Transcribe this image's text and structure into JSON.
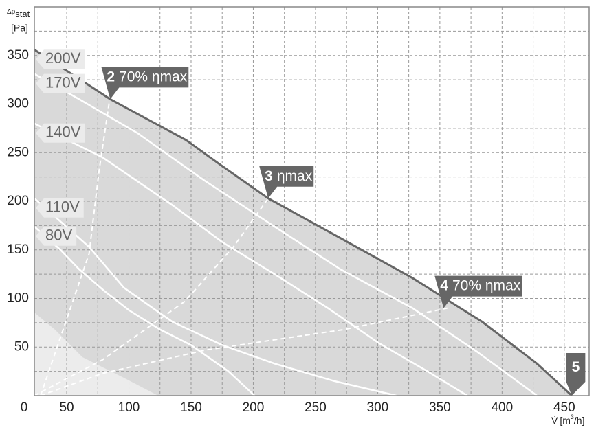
{
  "chart_data": {
    "type": "line",
    "y_label": {
      "symbol": "Δp",
      "subscript": "stat",
      "unit": "[Pa]"
    },
    "x_label": {
      "symbol": "V̇",
      "unit_start": "[m",
      "superscript": "3",
      "unit_end": "/h]"
    },
    "origin_label": "0",
    "xlim": [
      24,
      470
    ],
    "ylim": [
      0,
      400
    ],
    "xticks": [
      50,
      100,
      150,
      200,
      250,
      300,
      350,
      400,
      450
    ],
    "yticks": [
      50,
      100,
      150,
      200,
      250,
      300,
      350
    ],
    "xgrid": [
      75,
      125,
      175,
      225,
      275,
      325,
      375,
      425
    ],
    "ygrid": [
      25,
      75,
      125,
      175,
      225,
      275,
      325,
      375
    ],
    "grid": true,
    "area_color": "#d9d9d9",
    "series": [
      {
        "name": "200V",
        "color": "#666666",
        "x": [
          24,
          85,
          146,
          173,
          212,
          273,
          328,
          384,
          428,
          456
        ],
        "values": [
          356,
          305,
          263,
          238,
          203,
          160,
          121,
          76,
          33,
          0
        ]
      },
      {
        "name": "170V",
        "color": "#ffffff",
        "x": [
          24,
          60,
          107,
          160,
          217,
          270,
          328,
          380,
          428
        ],
        "values": [
          331,
          305,
          270,
          222,
          174,
          130,
          90,
          45,
          0
        ]
      },
      {
        "name": "140V",
        "color": "#ffffff",
        "x": [
          24,
          79,
          135,
          175,
          217,
          260,
          301,
          340,
          372
        ],
        "values": [
          280,
          245,
          196,
          158,
          125,
          90,
          54,
          25,
          0
        ]
      },
      {
        "name": "110V",
        "color": "#ffffff",
        "x": [
          24,
          68,
          96,
          135,
          175,
          217,
          265,
          315
        ],
        "values": [
          203,
          153,
          111,
          76,
          52,
          33,
          15,
          0
        ]
      },
      {
        "name": "80V",
        "color": "#ffffff",
        "x": [
          24,
          45,
          60,
          80,
          100,
          125,
          150,
          180,
          201
        ],
        "values": [
          174,
          150,
          130,
          108,
          88,
          68,
          52,
          25,
          0
        ]
      }
    ],
    "efficiency_lines": [
      {
        "x": [
          29,
          68,
          76,
          85
        ],
        "values": [
          0,
          146,
          231,
          309
        ]
      },
      {
        "x": [
          24,
          79,
          145,
          184,
          212
        ],
        "values": [
          0,
          37,
          97,
          153,
          203
        ]
      },
      {
        "x": [
          29,
          79,
          162,
          273,
          356
        ],
        "values": [
          0,
          23,
          47,
          68,
          90
        ]
      }
    ],
    "annotations": [
      {
        "number": "2",
        "text": "70% ηmax",
        "x": 85,
        "y": 305
      },
      {
        "number": "3",
        "text": "ηmax",
        "x": 212,
        "y": 203
      },
      {
        "number": "4",
        "text": "70% ηmax",
        "x": 353,
        "y": 90
      },
      {
        "number": "5",
        "x": 456,
        "y": 0
      }
    ]
  }
}
